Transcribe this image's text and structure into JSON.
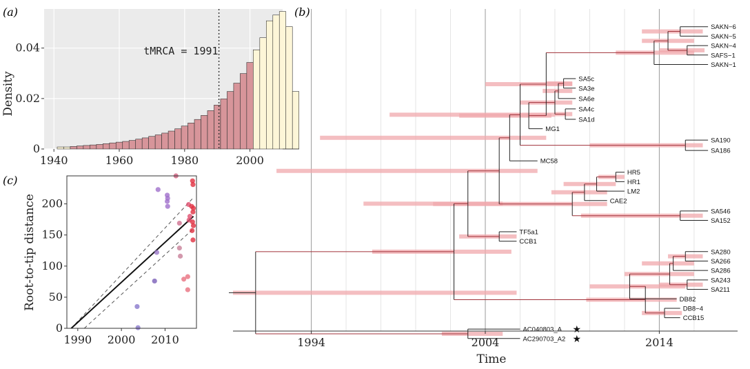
{
  "chart_data": [
    {
      "panel": "(a)",
      "type": "bar",
      "ylabel": "Density",
      "xlim": [
        1937,
        2010
      ],
      "ylim": [
        0,
        0.0555
      ],
      "x_ticks": [
        "1940",
        "1960",
        "1980",
        "2000"
      ],
      "y_ticks": [
        "0",
        "0.02",
        "0.04"
      ],
      "annotation": "tMRCA = 1991",
      "annotation_x": 1990.5,
      "bin_start": 1941,
      "bin_width": 2,
      "highlight_range": [
        1945,
        2001
      ],
      "values": [
        0.0008,
        0.0008,
        0.001,
        0.0012,
        0.0014,
        0.0016,
        0.0018,
        0.0021,
        0.0024,
        0.0027,
        0.003,
        0.0034,
        0.0039,
        0.0044,
        0.005,
        0.0056,
        0.0063,
        0.0071,
        0.008,
        0.0091,
        0.0103,
        0.0117,
        0.0133,
        0.0152,
        0.0174,
        0.0199,
        0.0228,
        0.0261,
        0.0299,
        0.0343,
        0.0393,
        0.0441,
        0.0508,
        0.0531,
        0.0545,
        0.0485,
        0.0228
      ],
      "colors": {
        "hpd": "#d7959a",
        "tail": "#fdf6d8",
        "bg": "#ebebeb"
      }
    },
    {
      "panel": "(c)",
      "type": "scatter",
      "ylabel": "Root-to-tip distance",
      "xlim": [
        1987.5,
        2017.2
      ],
      "ylim": [
        0,
        245
      ],
      "x_ticks": [
        "1990",
        "2000",
        "2010"
      ],
      "y_ticks": [
        "0",
        "50",
        "100",
        "150",
        "200"
      ],
      "regression": {
        "x": [
          1988.5,
          2016.5
        ],
        "y": [
          0,
          180
        ]
      },
      "bands": [
        {
          "x": [
            1988.5,
            2016.5
          ],
          "y": [
            0,
            210
          ]
        },
        {
          "x": [
            1991.5,
            2016.5
          ],
          "y": [
            0,
            160
          ]
        }
      ],
      "points": [
        {
          "x": 2003.6,
          "y": 35,
          "c": "#8878cc"
        },
        {
          "x": 2003.8,
          "y": 1,
          "c": "#8878cc"
        },
        {
          "x": 2007.6,
          "y": 76,
          "c": "#7a5fb8"
        },
        {
          "x": 2008.1,
          "y": 122,
          "c": "#9a78c8"
        },
        {
          "x": 2008.4,
          "y": 223,
          "c": "#a070cc"
        },
        {
          "x": 2010.5,
          "y": 214,
          "c": "#a070cc"
        },
        {
          "x": 2010.6,
          "y": 209,
          "c": "#a070cc"
        },
        {
          "x": 2010.5,
          "y": 204,
          "c": "#a070cc"
        },
        {
          "x": 2010.6,
          "y": 196,
          "c": "#a070cc"
        },
        {
          "x": 2012.5,
          "y": 245,
          "c": "#d06080"
        },
        {
          "x": 2013.3,
          "y": 169,
          "c": "#d07090"
        },
        {
          "x": 2013.3,
          "y": 129,
          "c": "#c88098"
        },
        {
          "x": 2013.5,
          "y": 116,
          "c": "#c88098"
        },
        {
          "x": 2014.3,
          "y": 79,
          "c": "#e87080"
        },
        {
          "x": 2015.2,
          "y": 83,
          "c": "#e87080"
        },
        {
          "x": 2015.2,
          "y": 62,
          "c": "#e87080"
        },
        {
          "x": 2015.4,
          "y": 199,
          "c": "#e05070"
        },
        {
          "x": 2015.5,
          "y": 174,
          "c": "#e05070"
        },
        {
          "x": 2015.7,
          "y": 180,
          "c": "#e05070"
        },
        {
          "x": 2016.1,
          "y": 196,
          "c": "#e03040"
        },
        {
          "x": 2016.3,
          "y": 237,
          "c": "#e03040"
        },
        {
          "x": 2016.4,
          "y": 231,
          "c": "#e03040"
        },
        {
          "x": 2016.5,
          "y": 193,
          "c": "#e03040"
        },
        {
          "x": 2016.4,
          "y": 187,
          "c": "#e03040"
        },
        {
          "x": 2016.3,
          "y": 171,
          "c": "#e03040"
        },
        {
          "x": 2016.2,
          "y": 157,
          "c": "#e03040"
        },
        {
          "x": 2016.4,
          "y": 142,
          "c": "#e03040"
        },
        {
          "x": 2016.5,
          "y": 165,
          "c": "#e03040"
        }
      ]
    },
    {
      "panel": "(b)",
      "type": "tree",
      "xlabel": "Time",
      "xlim": [
        1989.5,
        2018.5
      ],
      "x_ticks": [
        "1994",
        "2004",
        "2014"
      ],
      "x_tick_values": [
        1994,
        2004,
        2014
      ],
      "minor_gridlines": [
        1996,
        1998,
        2000,
        2002,
        2006,
        2008,
        2010,
        2012,
        2016
      ],
      "hpd_color": "#f0a8ac",
      "branch_color": "#a03038",
      "tips": [
        {
          "label": "SAKN−6",
          "t": 2016.8,
          "r": 1
        },
        {
          "label": "SAKN−5",
          "t": 2016.8,
          "r": 2
        },
        {
          "label": "SAKN−4",
          "t": 2016.8,
          "r": 3
        },
        {
          "label": "SAFS−1",
          "t": 2016.8,
          "r": 4
        },
        {
          "label": "SAKN−1",
          "t": 2016.8,
          "r": 5
        },
        {
          "label": "SA5c",
          "t": 2009.2,
          "r": 6.5
        },
        {
          "label": "SA3e",
          "t": 2009.2,
          "r": 7.5
        },
        {
          "label": "SA6e",
          "t": 2009.2,
          "r": 8.6
        },
        {
          "label": "SA4c",
          "t": 2009.2,
          "r": 9.7
        },
        {
          "label": "SA1d",
          "t": 2009.2,
          "r": 10.8
        },
        {
          "label": "MG1",
          "t": 2007.3,
          "r": 11.8
        },
        {
          "label": "SA190",
          "t": 2016.8,
          "r": 13
        },
        {
          "label": "SA186",
          "t": 2016.8,
          "r": 14.1
        },
        {
          "label": "MC58",
          "t": 2007.0,
          "r": 15.2
        },
        {
          "label": "HR5",
          "t": 2012.0,
          "r": 16.4
        },
        {
          "label": "HR1",
          "t": 2012.0,
          "r": 17.4
        },
        {
          "label": "LM2",
          "t": 2012.0,
          "r": 18.4
        },
        {
          "label": "CAE2",
          "t": 2011.0,
          "r": 19.4
        },
        {
          "label": "SA546",
          "t": 2016.8,
          "r": 20.5
        },
        {
          "label": "SA152",
          "t": 2016.8,
          "r": 21.5
        },
        {
          "label": "TF5a1",
          "t": 2005.8,
          "r": 22.7
        },
        {
          "label": "CCB1",
          "t": 2005.8,
          "r": 23.7
        },
        {
          "label": "SA280",
          "t": 2016.8,
          "r": 24.8
        },
        {
          "label": "SA266",
          "t": 2016.8,
          "r": 25.8
        },
        {
          "label": "SA286",
          "t": 2016.8,
          "r": 26.8
        },
        {
          "label": "SA243",
          "t": 2016.8,
          "r": 27.8
        },
        {
          "label": "SA211",
          "t": 2016.8,
          "r": 28.8
        },
        {
          "label": "DB82",
          "t": 2015.0,
          "r": 29.8
        },
        {
          "label": "DB8−4",
          "t": 2015.2,
          "r": 30.8
        },
        {
          "label": "CCB15",
          "t": 2015.2,
          "r": 31.8
        },
        {
          "label": "AC040803_A",
          "t": 2006.0,
          "r": 33.0
        },
        {
          "label": "AC290703_A2",
          "t": 2006.0,
          "r": 34.0
        }
      ],
      "star": "★",
      "starred": [
        "AC040803_A",
        "AC290703_A2"
      ],
      "nodes": [
        {
          "id": "n1",
          "t": 2015.2,
          "c": [
            "SAKN−6",
            "SAKN−5"
          ],
          "h": [
            2013,
            2016.5
          ]
        },
        {
          "id": "n2",
          "t": 2015.6,
          "c": [
            "SAKN−4",
            "SAFS−1"
          ],
          "h": [
            2014,
            2016.6
          ]
        },
        {
          "id": "n3",
          "t": 2014.5,
          "c": [
            "n1",
            "n2"
          ],
          "h": [
            2013,
            2016
          ]
        },
        {
          "id": "n4",
          "t": 2013.7,
          "c": [
            "n3",
            "SAKN−1"
          ],
          "h": [
            2011.5,
            2016
          ]
        },
        {
          "id": "n5",
          "t": 2008.5,
          "c": [
            "SA5c",
            "SA3e"
          ],
          "h": [
            2007.5,
            2009
          ]
        },
        {
          "id": "n6",
          "t": 2008.2,
          "c": [
            "n5",
            "SA6e"
          ],
          "h": [
            2007.3,
            2009
          ]
        },
        {
          "id": "n7",
          "t": 2008.6,
          "c": [
            "SA4c",
            "SA1d"
          ],
          "h": [
            2008,
            2009
          ]
        },
        {
          "id": "n8",
          "t": 2008.0,
          "c": [
            "n6",
            "n7"
          ],
          "h": [
            2006,
            2009
          ]
        },
        {
          "id": "n9",
          "t": 2006.5,
          "c": [
            "n8",
            "MG1"
          ],
          "h": [
            2002.5,
            2007.8
          ]
        },
        {
          "id": "n10",
          "t": 2007.5,
          "c": [
            "n4",
            "n9"
          ],
          "h": [
            2004,
            2009
          ]
        },
        {
          "id": "n11",
          "t": 2015.5,
          "c": [
            "SA190",
            "SA186"
          ],
          "h": [
            2010,
            2016.5
          ]
        },
        {
          "id": "n12",
          "t": 2006.0,
          "c": [
            "n10",
            "n11"
          ],
          "h": [
            1998.5,
            2008
          ]
        },
        {
          "id": "n13",
          "t": 2005.4,
          "c": [
            "n12",
            "MC58"
          ],
          "h": [
            1994.5,
            2007.5
          ]
        },
        {
          "id": "n14",
          "t": 2011.5,
          "c": [
            "HR5",
            "HR1"
          ],
          "h": [
            2010.5,
            2012
          ]
        },
        {
          "id": "n15",
          "t": 2010.4,
          "c": [
            "n14",
            "LM2"
          ],
          "h": [
            2008.5,
            2011.5
          ]
        },
        {
          "id": "n16",
          "t": 2009.7,
          "c": [
            "n15",
            "CAE2"
          ],
          "h": [
            2007.8,
            2011
          ]
        },
        {
          "id": "n17",
          "t": 2015.2,
          "c": [
            "SA546",
            "SA152"
          ],
          "h": [
            2009.5,
            2016.5
          ]
        },
        {
          "id": "n18",
          "t": 2009.0,
          "c": [
            "n16",
            "n17"
          ],
          "h": [
            2001,
            2011
          ]
        },
        {
          "id": "n19",
          "t": 2004.8,
          "c": [
            "n13",
            "n18"
          ],
          "h": [
            1992,
            2007
          ]
        },
        {
          "id": "n20",
          "t": 2004.8,
          "c": [
            "TF5a1",
            "CCB1"
          ],
          "h": [
            2002.5,
            2005.8
          ]
        },
        {
          "id": "n21",
          "t": 2003.0,
          "c": [
            "n19",
            "n20"
          ],
          "h": [
            1997,
            2005
          ]
        },
        {
          "id": "n22",
          "t": 2015.5,
          "c": [
            "SA280",
            "SA266"
          ],
          "h": [
            2014.5,
            2016.5
          ]
        },
        {
          "id": "n23",
          "t": 2014.8,
          "c": [
            "n22",
            "SA286"
          ],
          "h": [
            2013,
            2016
          ]
        },
        {
          "id": "n24",
          "t": 2015.6,
          "c": [
            "SA243",
            "SA211"
          ],
          "h": [
            2014,
            2016.5
          ]
        },
        {
          "id": "n25",
          "t": 2014.6,
          "c": [
            "n23",
            "n24"
          ],
          "h": [
            2012,
            2016
          ]
        },
        {
          "id": "n26",
          "t": 2012.3,
          "c": [
            "n25",
            "DB82"
          ],
          "h": [
            2010,
            2015.5
          ]
        },
        {
          "id": "n27",
          "t": 2014.3,
          "c": [
            "DB8−4",
            "CCB15"
          ],
          "h": [
            2013,
            2015.3
          ]
        },
        {
          "id": "n28",
          "t": 2013.2,
          "c": [
            "n26",
            "n27"
          ],
          "h": [
            2009.8,
            2015
          ]
        },
        {
          "id": "n29",
          "t": 2002.2,
          "c": [
            "n21",
            "n28"
          ],
          "h": [
            1997.5,
            2005.5
          ]
        },
        {
          "id": "n30",
          "t": 2003.0,
          "c": [
            "AC040803_A",
            "AC290703_A2"
          ],
          "h": [
            2001.5,
            2005
          ]
        },
        {
          "id": "root",
          "t": 1990.8,
          "c": [
            "n29",
            "n30"
          ],
          "h": [
            1989.5,
            2005.8
          ]
        }
      ]
    }
  ]
}
